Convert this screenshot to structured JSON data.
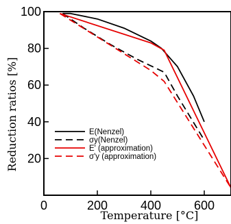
{
  "chart_data": {
    "type": "line",
    "xlabel": "Temperature [°C]",
    "ylabel": "Reduction ratios [%]",
    "xlim": [
      0,
      700
    ],
    "ylim": [
      0,
      100
    ],
    "x_ticks": [
      0,
      200,
      400,
      600
    ],
    "y_ticks": [
      20,
      40,
      60,
      80,
      100
    ],
    "grid": false,
    "legend_position": "bottom-left",
    "series": [
      {
        "name": "E(Nenzel)",
        "color": "#000000",
        "dash": "solid",
        "x": [
          70,
          100,
          200,
          300,
          400,
          440,
          500,
          560,
          600
        ],
        "y": [
          99,
          99,
          96,
          91,
          84,
          80,
          70,
          54,
          40
        ]
      },
      {
        "name": "σy(Nenzel)",
        "color": "#000000",
        "dash": "dashed",
        "x": [
          70,
          150,
          250,
          350,
          450,
          500,
          550,
          600
        ],
        "y": [
          99,
          91,
          82,
          74,
          67,
          54,
          42,
          30
        ]
      },
      {
        "name": "E' (approximation)",
        "color": "#e60000",
        "dash": "solid",
        "x": [
          60,
          400,
          450,
          700
        ],
        "y": [
          99,
          83,
          79,
          4
        ]
      },
      {
        "name": "σ'y (approximation)",
        "color": "#e60000",
        "dash": "dashed",
        "x": [
          60,
          400,
          450,
          700
        ],
        "y": [
          99,
          68,
          62,
          4
        ]
      }
    ]
  }
}
